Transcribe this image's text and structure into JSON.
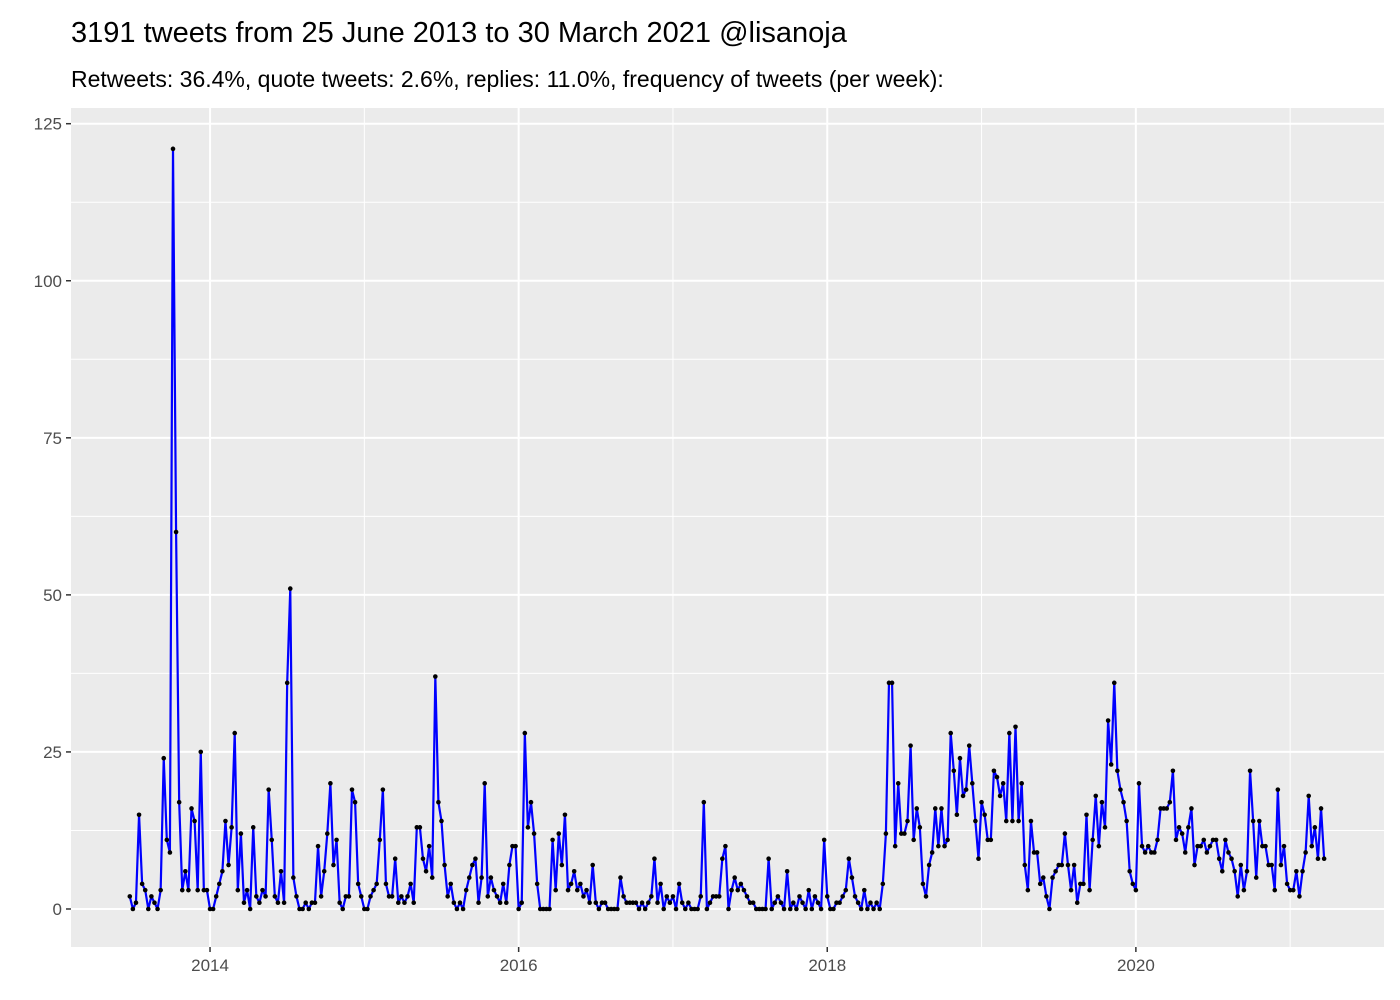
{
  "chart_data": {
    "type": "line",
    "title": "3191 tweets from 25 June 2013 to 30 March 2021 @lisanoja",
    "subtitle": "Retweets: 36.4%, quote tweets: 2.6%, replies: 11.0%, frequency of tweets (per week):",
    "color": "#0000ff",
    "point_color": "#000000",
    "background": "#ebebeb",
    "grid": true,
    "xlim": [
      2013.099,
      2021.608
    ],
    "ylim": [
      -6.05,
      127.5
    ],
    "xticks": [
      2014,
      2016,
      2018,
      2020
    ],
    "yticks": [
      0,
      25,
      50,
      75,
      100,
      125
    ],
    "xminor": [
      2015,
      2017,
      2019,
      2021
    ],
    "yminor": [
      12.5,
      37.5,
      62.5,
      87.5,
      112.5
    ],
    "x": [
      2013.48,
      2013.5,
      2013.52,
      2013.54,
      2013.56,
      2013.58,
      2013.6,
      2013.62,
      2013.64,
      2013.66,
      2013.68,
      2013.7,
      2013.72,
      2013.74,
      2013.76,
      2013.78,
      2013.8,
      2013.82,
      2013.84,
      2013.86,
      2013.88,
      2013.9,
      2013.92,
      2013.94,
      2013.96,
      2013.98,
      2014,
      2014.02,
      2014.04,
      2014.06,
      2014.08,
      2014.1,
      2014.12,
      2014.14,
      2014.16,
      2014.18,
      2014.2,
      2014.22,
      2014.24,
      2014.26,
      2014.28,
      2014.3,
      2014.32,
      2014.34,
      2014.36,
      2014.38,
      2014.4,
      2014.42,
      2014.44,
      2014.46,
      2014.48,
      2014.5,
      2014.52,
      2014.54,
      2014.56,
      2014.58,
      2014.6,
      2014.62,
      2014.64,
      2014.66,
      2014.68,
      2014.7,
      2014.72,
      2014.74,
      2014.76,
      2014.78,
      2014.8,
      2014.82,
      2014.84,
      2014.86,
      2014.88,
      2014.9,
      2014.92,
      2014.94,
      2014.96,
      2014.98,
      2015,
      2015.02,
      2015.04,
      2015.06,
      2015.08,
      2015.1,
      2015.12,
      2015.14,
      2015.16,
      2015.18,
      2015.2,
      2015.22,
      2015.24,
      2015.26,
      2015.28,
      2015.3,
      2015.32,
      2015.34,
      2015.36,
      2015.38,
      2015.4,
      2015.42,
      2015.44,
      2015.46,
      2015.48,
      2015.5,
      2015.52,
      2015.54,
      2015.56,
      2015.58,
      2015.6,
      2015.62,
      2015.64,
      2015.66,
      2015.68,
      2015.7,
      2015.72,
      2015.74,
      2015.76,
      2015.78,
      2015.8,
      2015.82,
      2015.84,
      2015.86,
      2015.88,
      2015.9,
      2015.92,
      2015.94,
      2015.96,
      2015.98,
      2016,
      2016.02,
      2016.04,
      2016.06,
      2016.08,
      2016.1,
      2016.12,
      2016.14,
      2016.16,
      2016.18,
      2016.2,
      2016.22,
      2016.24,
      2016.26,
      2016.28,
      2016.3,
      2016.32,
      2016.34,
      2016.36,
      2016.38,
      2016.4,
      2016.42,
      2016.44,
      2016.46,
      2016.48,
      2016.5,
      2016.52,
      2016.54,
      2016.56,
      2016.58,
      2016.6,
      2016.62,
      2016.64,
      2016.66,
      2016.68,
      2016.7,
      2016.72,
      2016.74,
      2016.76,
      2016.78,
      2016.8,
      2016.82,
      2016.84,
      2016.86,
      2016.88,
      2016.9,
      2016.92,
      2016.94,
      2016.96,
      2016.98,
      2017,
      2017.02,
      2017.04,
      2017.06,
      2017.08,
      2017.1,
      2017.12,
      2017.14,
      2017.16,
      2017.18,
      2017.2,
      2017.22,
      2017.24,
      2017.26,
      2017.28,
      2017.3,
      2017.32,
      2017.34,
      2017.36,
      2017.38,
      2017.4,
      2017.42,
      2017.44,
      2017.46,
      2017.48,
      2017.5,
      2017.52,
      2017.54,
      2017.56,
      2017.58,
      2017.6,
      2017.62,
      2017.64,
      2017.66,
      2017.68,
      2017.7,
      2017.72,
      2017.74,
      2017.76,
      2017.78,
      2017.8,
      2017.82,
      2017.84,
      2017.86,
      2017.88,
      2017.9,
      2017.92,
      2017.94,
      2017.96,
      2017.98,
      2018,
      2018.02,
      2018.04,
      2018.06,
      2018.08,
      2018.1,
      2018.12,
      2018.14,
      2018.16,
      2018.18,
      2018.2,
      2018.22,
      2018.24,
      2018.26,
      2018.28,
      2018.3,
      2018.32,
      2018.34,
      2018.36,
      2018.38,
      2018.4,
      2018.42,
      2018.44,
      2018.46,
      2018.48,
      2018.5,
      2018.52,
      2018.54,
      2018.56,
      2018.58,
      2018.6,
      2018.62,
      2018.64,
      2018.66,
      2018.68,
      2018.7,
      2018.72,
      2018.74,
      2018.76,
      2018.78,
      2018.8,
      2018.82,
      2018.84,
      2018.86,
      2018.88,
      2018.9,
      2018.92,
      2018.94,
      2018.96,
      2018.98,
      2019,
      2019.02,
      2019.04,
      2019.06,
      2019.08,
      2019.1,
      2019.12,
      2019.14,
      2019.16,
      2019.18,
      2019.2,
      2019.22,
      2019.24,
      2019.26,
      2019.28,
      2019.3,
      2019.32,
      2019.34,
      2019.36,
      2019.38,
      2019.4,
      2019.42,
      2019.44,
      2019.46,
      2019.48,
      2019.5,
      2019.52,
      2019.54,
      2019.56,
      2019.58,
      2019.6,
      2019.62,
      2019.64,
      2019.66,
      2019.68,
      2019.7,
      2019.72,
      2019.74,
      2019.76,
      2019.78,
      2019.8,
      2019.82,
      2019.84,
      2019.86,
      2019.88,
      2019.9,
      2019.92,
      2019.94,
      2019.96,
      2019.98,
      2020,
      2020.02,
      2020.04,
      2020.06,
      2020.08,
      2020.1,
      2020.12,
      2020.14,
      2020.16,
      2020.18,
      2020.2,
      2020.22,
      2020.24,
      2020.26,
      2020.28,
      2020.3,
      2020.32,
      2020.34,
      2020.36,
      2020.38,
      2020.4,
      2020.42,
      2020.44,
      2020.46,
      2020.48,
      2020.5,
      2020.52,
      2020.54,
      2020.56,
      2020.58,
      2020.6,
      2020.62,
      2020.64,
      2020.66,
      2020.68,
      2020.7,
      2020.72,
      2020.74,
      2020.76,
      2020.78,
      2020.8,
      2020.82,
      2020.84,
      2020.86,
      2020.88,
      2020.9,
      2020.92,
      2020.94,
      2020.96,
      2020.98,
      2021,
      2021.02,
      2021.04,
      2021.06,
      2021.08,
      2021.1,
      2021.12,
      2021.14,
      2021.16,
      2021.18,
      2021.2,
      2021.22
    ],
    "values": [
      2,
      0,
      1,
      15,
      4,
      3,
      0,
      2,
      1,
      0,
      3,
      24,
      11,
      9,
      121,
      60,
      17,
      3,
      6,
      3,
      16,
      14,
      3,
      25,
      3,
      3,
      0,
      0,
      2,
      4,
      6,
      14,
      7,
      13,
      28,
      3,
      12,
      1,
      3,
      0,
      13,
      2,
      1,
      3,
      2,
      19,
      11,
      2,
      1,
      6,
      1,
      36,
      51,
      5,
      2,
      0,
      0,
      1,
      0,
      1,
      1,
      10,
      2,
      6,
      12,
      20,
      7,
      11,
      1,
      0,
      2,
      2,
      19,
      17,
      4,
      2,
      0,
      0,
      2,
      3,
      4,
      11,
      19,
      4,
      2,
      2,
      8,
      1,
      2,
      1,
      2,
      4,
      1,
      13,
      13,
      8,
      6,
      10,
      5,
      37,
      17,
      14,
      7,
      2,
      4,
      1,
      0,
      1,
      0,
      3,
      5,
      7,
      8,
      1,
      5,
      20,
      2,
      5,
      3,
      2,
      1,
      4,
      1,
      7,
      10,
      10,
      0,
      1,
      28,
      13,
      17,
      12,
      4,
      0,
      0,
      0,
      0,
      11,
      3,
      12,
      7,
      15,
      3,
      4,
      6,
      3,
      4,
      2,
      3,
      1,
      7,
      1,
      0,
      1,
      1,
      0,
      0,
      0,
      0,
      5,
      2,
      1,
      1,
      1,
      1,
      0,
      1,
      0,
      1,
      2,
      8,
      1,
      4,
      0,
      2,
      1,
      2,
      0,
      4,
      1,
      0,
      1,
      0,
      0,
      0,
      2,
      17,
      0,
      1,
      2,
      2,
      2,
      8,
      10,
      0,
      3,
      5,
      3,
      4,
      3,
      2,
      1,
      1,
      0,
      0,
      0,
      0,
      8,
      0,
      1,
      2,
      1,
      0,
      6,
      0,
      1,
      0,
      2,
      1,
      0,
      3,
      0,
      2,
      1,
      0,
      11,
      2,
      0,
      0,
      1,
      1,
      2,
      3,
      8,
      5,
      2,
      1,
      0,
      3,
      0,
      1,
      0,
      1,
      0,
      4,
      12,
      36,
      36,
      10,
      20,
      12,
      12,
      14,
      26,
      11,
      16,
      13,
      4,
      2,
      7,
      9,
      16,
      10,
      16,
      10,
      11,
      28,
      22,
      15,
      24,
      18,
      19,
      26,
      20,
      14,
      8,
      17,
      15,
      11,
      11,
      22,
      21,
      18,
      20,
      14,
      28,
      14,
      29,
      14,
      20,
      7,
      3,
      14,
      9,
      9,
      4,
      5,
      2,
      0,
      5,
      6,
      7,
      7,
      12,
      7,
      3,
      7,
      1,
      4,
      4,
      15,
      3,
      11,
      18,
      10,
      17,
      13,
      30,
      23,
      36,
      22,
      19,
      17,
      14,
      6,
      4,
      3,
      20,
      10,
      9,
      10,
      9,
      9,
      11,
      16,
      16,
      16,
      17,
      22,
      11,
      13,
      12,
      9,
      13,
      16,
      7,
      10,
      10,
      11,
      9,
      10,
      11,
      11,
      8,
      6,
      11,
      9,
      8,
      6,
      2,
      7,
      3,
      6,
      22,
      14,
      5,
      14,
      10,
      10,
      7,
      7,
      3,
      19,
      7,
      10,
      4,
      3,
      3,
      6,
      2,
      6,
      9,
      18,
      10,
      13,
      8,
      16,
      8
    ]
  }
}
